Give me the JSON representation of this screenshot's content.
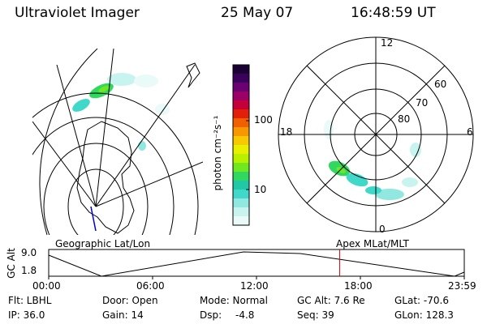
{
  "header": {
    "title": "Ultraviolet Imager",
    "date": "25 May 07",
    "time": "16:48:59 UT"
  },
  "colorbar": {
    "unit": "photon cm⁻²s⁻¹",
    "ticks": [
      "100",
      "10"
    ],
    "colors": [
      "#1a0033",
      "#3a005c",
      "#6a0072",
      "#9a0066",
      "#c4003a",
      "#e2200a",
      "#f06000",
      "#f89800",
      "#f8c800",
      "#e8f000",
      "#b8f000",
      "#70e820",
      "#30d860",
      "#20c8a8",
      "#40d8c8",
      "#90e8e0",
      "#c8f4f0",
      "#eafaf8"
    ]
  },
  "polar_plot": {
    "clock_labels": [
      "12",
      "18",
      "6",
      "0"
    ],
    "lat_labels": [
      "60",
      "70",
      "80"
    ]
  },
  "map": {
    "caption": "Geographic Lat/Lon"
  },
  "polar_caption": "Apex MLat/MLT",
  "orbit": {
    "ylabel": "GC Alt",
    "ymax": "9.0",
    "ymin": "1.8",
    "xticks": [
      "00:00",
      "06:00",
      "12:00",
      "18:00",
      "23:59"
    ],
    "current_time_fraction": 0.7
  },
  "status": {
    "flt": "Flt: LBHL",
    "ip": "IP: 36.0",
    "door": "Door: Open",
    "gain": "Gain: 14",
    "mode": "Mode: Normal",
    "dsp_label": "Dsp:",
    "dsp_value": "-4.8",
    "gcalt": "GC Alt: 7.6 Re",
    "seq": "Seq: 39",
    "glat": "GLat: -70.6",
    "glon": "GLon: 128.3"
  }
}
